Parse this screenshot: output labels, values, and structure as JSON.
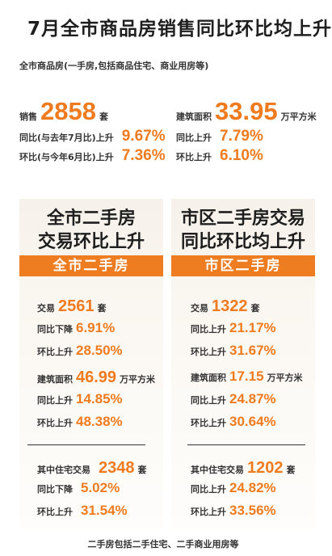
{
  "title": "7月全市商品房销售同比环比均上升",
  "subtitle": "全市商品房(一手房,包括商品住宅、商业用房等)",
  "top": {
    "sales_label": "销售",
    "sales_value": "2858",
    "sales_unit": "套",
    "sales_yoy_label": "同比(与去年7月比)上升",
    "sales_yoy_value": "9.67%",
    "sales_mom_label": "环比(与今年6月比)上升",
    "sales_mom_value": "7.36%",
    "area_label": "建筑面积",
    "area_value": "33.95",
    "area_unit": "万平方米",
    "area_yoy_label": "同比上升",
    "area_yoy_value": "7.79%",
    "area_mom_label": "环比上升",
    "area_mom_value": "6.10%"
  },
  "left_panel": {
    "heading_line1": "全市二手房",
    "heading_line2": "交易环比上升",
    "banner": "全市二手房",
    "deals_label": "交易",
    "deals_value": "2561",
    "deals_unit": "套",
    "deals_yoy_label": "同比下降",
    "deals_yoy_value": "6.91%",
    "deals_mom_label": "环比上升",
    "deals_mom_value": "28.50%",
    "area_label": "建筑面积",
    "area_value": "46.99",
    "area_unit": "万平方米",
    "area_yoy_label": "同比上升",
    "area_yoy_value": "14.85%",
    "area_mom_label": "环比上升",
    "area_mom_value": "48.38%",
    "res_label": "其中住宅交易",
    "res_value": "2348",
    "res_unit": "套",
    "res_yoy_label": "同比下降",
    "res_yoy_value": "5.02%",
    "res_mom_label": "环比上升",
    "res_mom_value": "31.54%"
  },
  "right_panel": {
    "heading_line1": "市区二手房交易",
    "heading_line2": "同比环比均上升",
    "banner": "市区二手房",
    "deals_label": "交易",
    "deals_value": "1322",
    "deals_unit": "套",
    "deals_yoy_label": "同比上升",
    "deals_yoy_value": "21.17%",
    "deals_mom_label": "环比上升",
    "deals_mom_value": "31.67%",
    "area_label": "建筑面积",
    "area_value": "17.15",
    "area_unit": "万平方米",
    "area_yoy_label": "同比上升",
    "area_yoy_value": "24.87%",
    "area_mom_label": "环比上升",
    "area_mom_value": "30.64%",
    "res_label": "其中住宅交易",
    "res_value": "1202",
    "res_unit": "套",
    "res_yoy_label": "同比上升",
    "res_yoy_value": "24.82%",
    "res_mom_label": "环比上升",
    "res_mom_value": "33.56%"
  },
  "footer": "二手房包括二手住宅、二手商业用房等"
}
